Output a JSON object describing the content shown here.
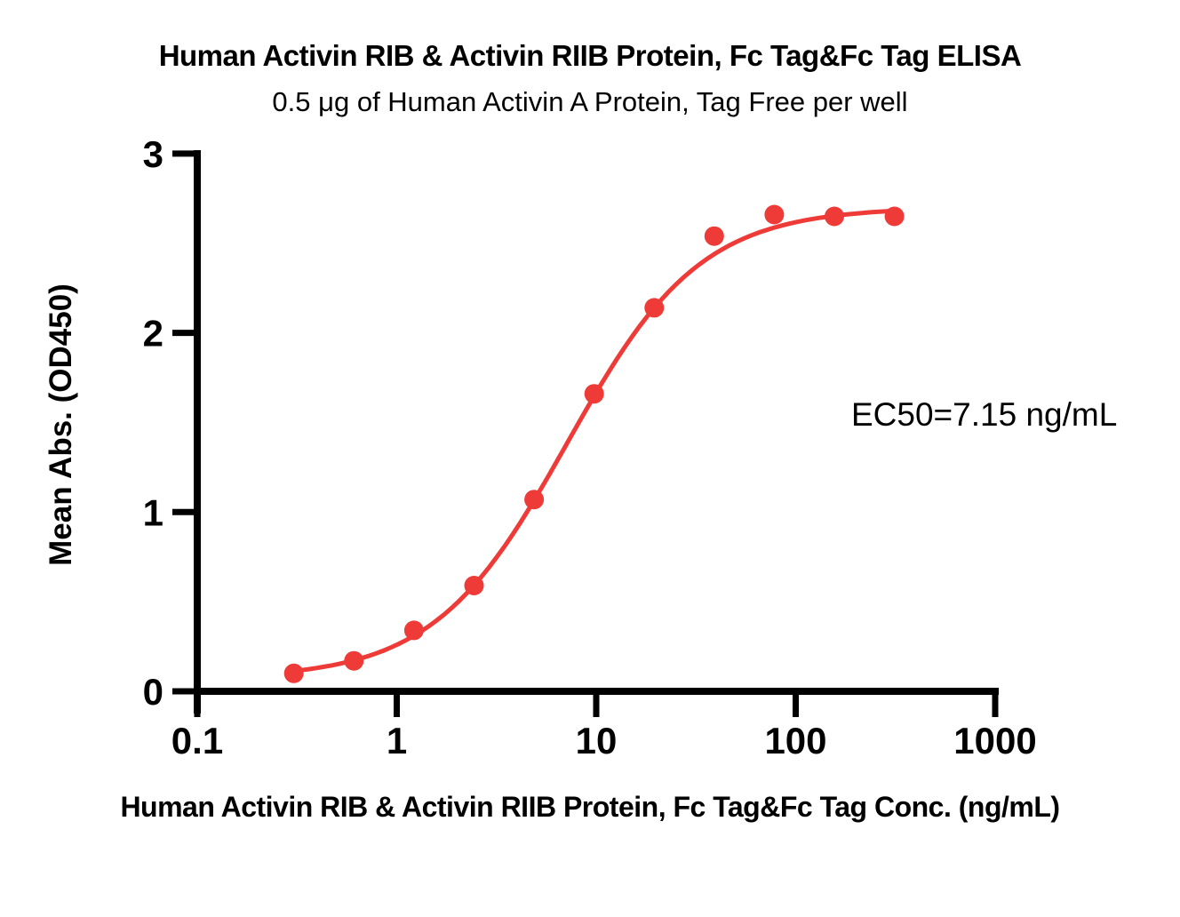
{
  "title": "Human Activin RIB & Activin RIIB Protein, Fc Tag&Fc Tag ELISA",
  "subtitle": "0.5 μg of Human Activin A Protein, Tag Free per well",
  "annotation": "EC50=7.15 ng/mL",
  "colors": {
    "series": "#EE3B38",
    "axis": "#000000",
    "text": "#000000",
    "background": "#ffffff"
  },
  "chart_data": {
    "type": "scatter",
    "title": "Human Activin RIB & Activin RIIB Protein, Fc Tag&Fc Tag ELISA",
    "subtitle": "0.5 μg of Human Activin A Protein, Tag Free per well",
    "xlabel": "Human Activin RIB & Activin RIIB Protein, Fc Tag&Fc Tag Conc. (ng/mL)",
    "ylabel": "Mean Abs. (OD450)",
    "x_scale": "log",
    "xlim": [
      0.1,
      1000
    ],
    "ylim": [
      0,
      3
    ],
    "grid": false,
    "legend": "none",
    "x_ticks": [
      0.1,
      1,
      10,
      100,
      1000
    ],
    "x_tick_labels": [
      "0.1",
      "1",
      "10",
      "100",
      "1000"
    ],
    "y_ticks": [
      0,
      1,
      2,
      3
    ],
    "y_tick_labels": [
      "0",
      "1",
      "2",
      "3"
    ],
    "annotation": "EC50=7.15 ng/mL",
    "series": [
      {
        "name": "Human Activin RIB & Activin RIIB Protein, Fc Tag&Fc Tag",
        "x": [
          0.305,
          0.61,
          1.22,
          2.44,
          4.88,
          9.77,
          19.53,
          39.06,
          78.13,
          156.25,
          312.5
        ],
        "y": [
          0.1,
          0.17,
          0.34,
          0.59,
          1.07,
          1.66,
          2.14,
          2.54,
          2.66,
          2.65,
          2.65
        ]
      }
    ],
    "fit_curve": {
      "model": "4PL",
      "ec50": 7.15,
      "hill": 1.3,
      "bottom": 0.07,
      "top": 2.7
    }
  }
}
